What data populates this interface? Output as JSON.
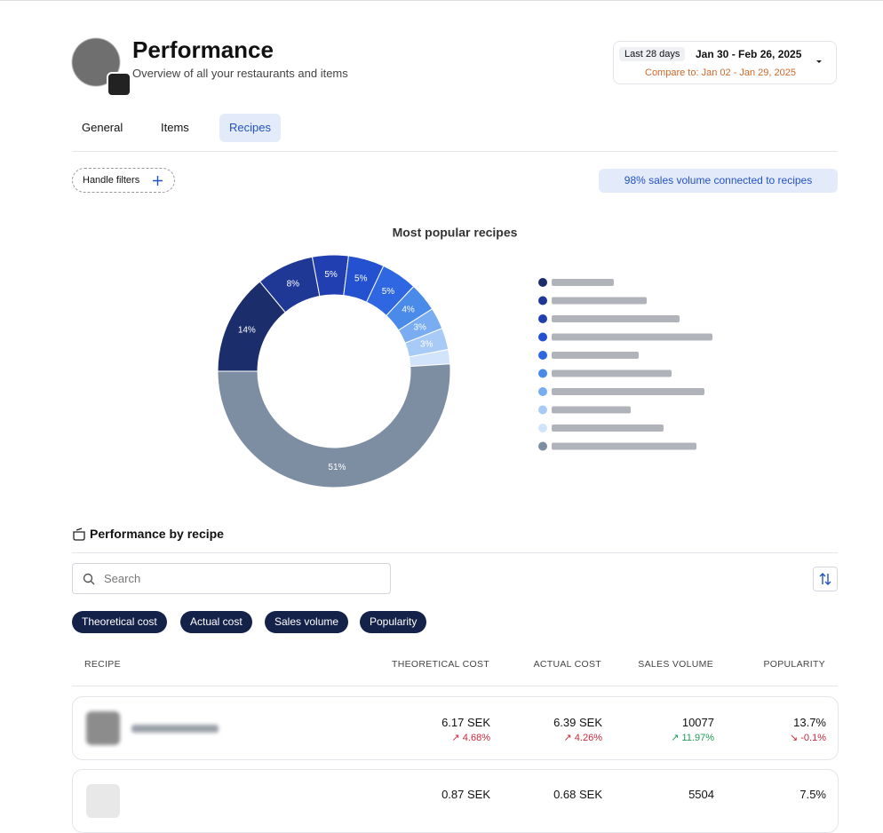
{
  "header": {
    "title": "Performance",
    "subtitle": "Overview of all your restaurants and items",
    "period_badge": "Last 28 days",
    "period": "Jan 30 - Feb 26, 2025",
    "compare": "Compare to: Jan 02 - Jan 29, 2025"
  },
  "tabs": [
    "General",
    "Items",
    "Recipes"
  ],
  "filters": {
    "button": "Handle filters",
    "banner": "98% sales volume connected to recipes"
  },
  "chart_data": {
    "type": "pie",
    "title": "Most popular recipes",
    "categories": [
      null,
      null,
      null,
      null,
      null,
      null,
      null,
      null,
      null,
      null
    ],
    "values": [
      14,
      8,
      5,
      5,
      5,
      4,
      3,
      3,
      2,
      51
    ],
    "value_labels": [
      "14%",
      "8%",
      "5%",
      "5%",
      "5%",
      "4%",
      "3%",
      "3%",
      null,
      "51%"
    ],
    "colors": [
      "#1c2d6b",
      "#1f3896",
      "#213fb0",
      "#2451cf",
      "#2f66e2",
      "#4a8ae9",
      "#79acf1",
      "#a8caf6",
      "#d2e4fb",
      "#7d8ea3"
    ]
  },
  "section": {
    "title": "Performance by recipe",
    "search_placeholder": "Search",
    "chips": [
      "Theoretical cost",
      "Actual cost",
      "Sales volume",
      "Popularity"
    ]
  },
  "table": {
    "headers": [
      "RECIPE",
      "THEORETICAL COST",
      "ACTUAL COST",
      "SALES VOLUME",
      "POPULARITY"
    ],
    "rows": [
      [
        null,
        "6.17 SEK",
        "↗ 4.68%",
        "6.39 SEK",
        "↗ 4.26%",
        "10077",
        "↗ 11.97%",
        "13.7%",
        "↘ -0.1%"
      ],
      [
        null,
        "0.87 SEK",
        null,
        "0.68 SEK",
        null,
        "5504",
        null,
        "7.5%",
        null
      ]
    ]
  }
}
